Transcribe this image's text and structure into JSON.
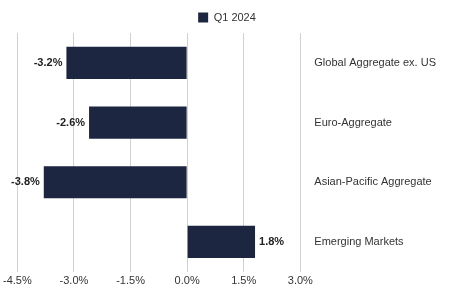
{
  "chart_data": {
    "type": "bar",
    "orientation": "horizontal",
    "categories": [
      "Global Aggregate ex. US",
      "Euro-Aggregate",
      "Asian-Pacific Aggregate",
      "Emerging Markets"
    ],
    "series": [
      {
        "name": "Q1 2024",
        "color": "#1c2640",
        "values": [
          -3.2,
          -2.6,
          -3.8,
          1.8
        ],
        "value_labels": [
          "-3.2%",
          "-2.6%",
          "-3.8%",
          "1.8%"
        ]
      }
    ],
    "xlim": [
      -4.5,
      3.0
    ],
    "xticks": [
      {
        "value": -4.5,
        "label": "-4.5%"
      },
      {
        "value": -3.0,
        "label": "-3.0%"
      },
      {
        "value": -1.5,
        "label": "-1.5%"
      },
      {
        "value": 0,
        "label": "0.0%"
      },
      {
        "value": 1.5,
        "label": "1.5%"
      },
      {
        "value": 3.0,
        "label": "3.0%"
      }
    ],
    "grid": true,
    "legend": "top",
    "data_labels": true
  }
}
